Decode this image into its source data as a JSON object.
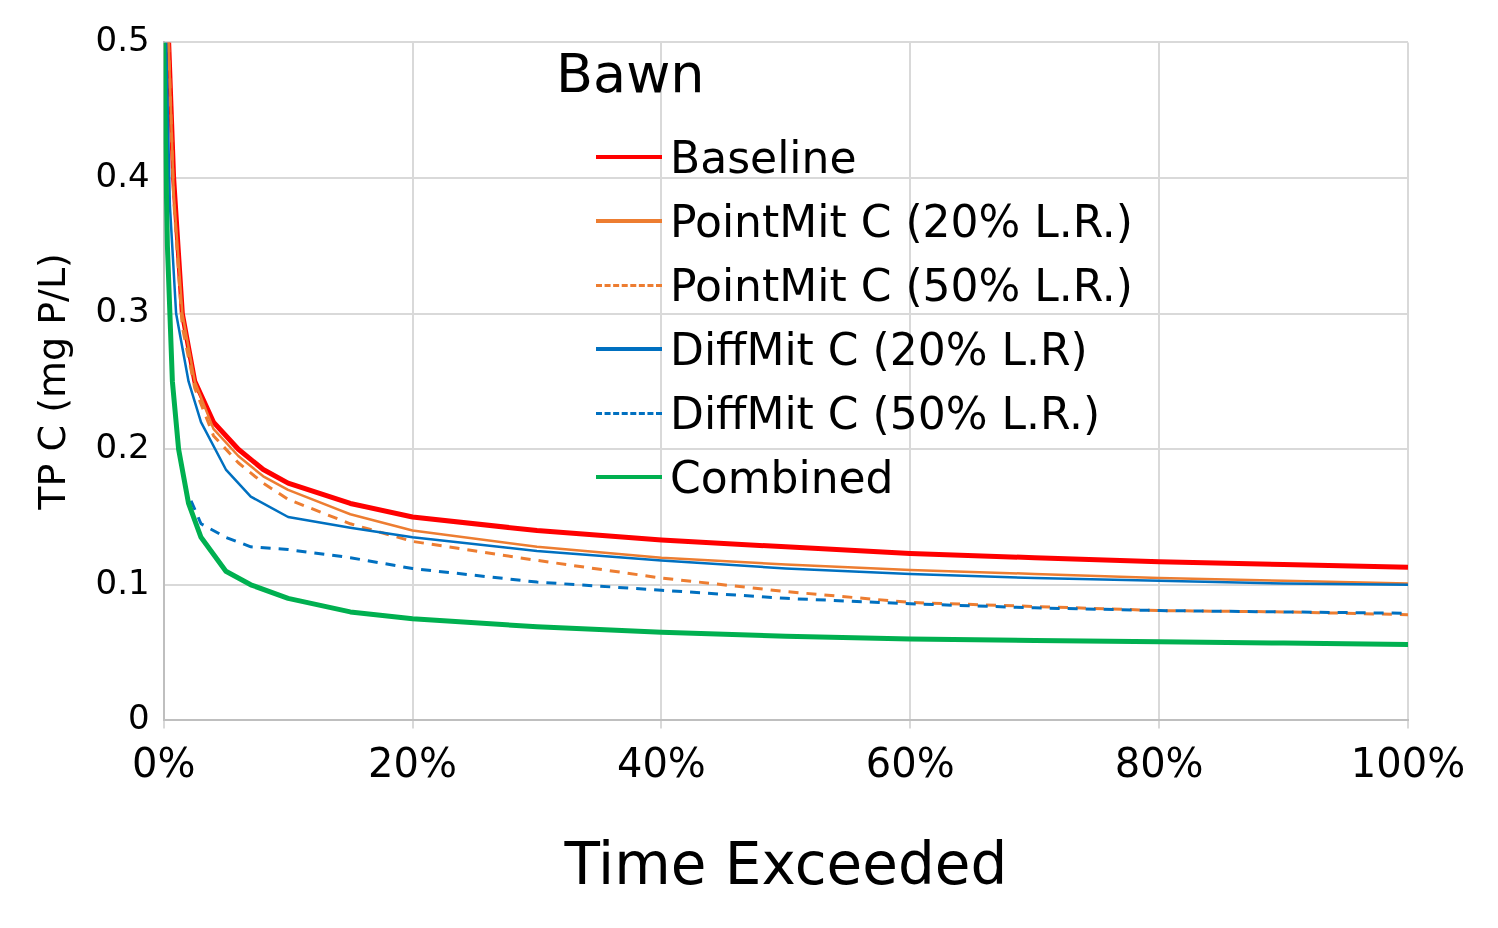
{
  "chart_data": {
    "type": "line",
    "legend_title": "Bawn",
    "xlabel": "Time Exceeded",
    "ylabel": "TP C (mg P/L)",
    "xlim": [
      0,
      100
    ],
    "xticks": [
      {
        "value": 0,
        "label": "0%"
      },
      {
        "value": 20,
        "label": "20%"
      },
      {
        "value": 40,
        "label": "40%"
      },
      {
        "value": 60,
        "label": "60%"
      },
      {
        "value": 80,
        "label": "80%"
      },
      {
        "value": 100,
        "label": "100%"
      }
    ],
    "ylim": [
      0,
      0.5
    ],
    "yticks": [
      0,
      0.1,
      0.2,
      0.3,
      0.4,
      0.5
    ],
    "grid": true,
    "legend": "top right",
    "marker": "none",
    "series": [
      {
        "name": "Baseline",
        "color": "#ff0000",
        "line_style": "solid",
        "x": [
          0.4,
          0.8,
          1.5,
          2.5,
          4,
          6,
          8,
          10,
          15,
          20,
          30,
          40,
          50,
          60,
          70,
          80,
          90,
          100
        ],
        "values": [
          0.5,
          0.4,
          0.3,
          0.25,
          0.22,
          0.2,
          0.185,
          0.175,
          0.16,
          0.15,
          0.14,
          0.133,
          0.128,
          0.123,
          0.12,
          0.117,
          0.115,
          0.113
        ]
      },
      {
        "name": "PointMit C (20% L.R.)",
        "color": "#ed7d31",
        "line_style": "solid",
        "x": [
          0.4,
          0.8,
          1.5,
          2.5,
          4,
          6,
          8,
          10,
          15,
          20,
          30,
          40,
          50,
          60,
          70,
          80,
          90,
          100
        ],
        "values": [
          0.5,
          0.39,
          0.3,
          0.25,
          0.215,
          0.195,
          0.18,
          0.17,
          0.152,
          0.14,
          0.128,
          0.12,
          0.115,
          0.111,
          0.108,
          0.105,
          0.103,
          0.101
        ]
      },
      {
        "name": "PointMit C (50% L.R.)",
        "color": "#ed7d31",
        "line_style": "dashed",
        "x": [
          0.4,
          0.8,
          1.5,
          2.5,
          4,
          6,
          8,
          10,
          15,
          20,
          30,
          40,
          50,
          60,
          70,
          80,
          90,
          100
        ],
        "values": [
          0.5,
          0.385,
          0.29,
          0.245,
          0.21,
          0.19,
          0.175,
          0.163,
          0.145,
          0.132,
          0.118,
          0.105,
          0.095,
          0.087,
          0.084,
          0.081,
          0.08,
          0.078
        ]
      },
      {
        "name": "DiffMit C (20% L.R)",
        "color": "#0070c0",
        "line_style": "solid",
        "x": [
          0.2,
          0.5,
          1,
          2,
          3,
          5,
          7,
          10,
          15,
          20,
          30,
          40,
          50,
          60,
          70,
          80,
          90,
          100
        ],
        "values": [
          0.5,
          0.38,
          0.3,
          0.25,
          0.22,
          0.185,
          0.165,
          0.15,
          0.142,
          0.135,
          0.125,
          0.118,
          0.112,
          0.108,
          0.105,
          0.103,
          0.101,
          0.1
        ]
      },
      {
        "name": "DiffMit C (50% L.R.)",
        "color": "#0070c0",
        "line_style": "dashed",
        "x": [
          2.2,
          3,
          5,
          7,
          10,
          15,
          20,
          25,
          30,
          40,
          50,
          60,
          70,
          80,
          90,
          100
        ],
        "values": [
          0.162,
          0.145,
          0.135,
          0.128,
          0.126,
          0.12,
          0.112,
          0.107,
          0.102,
          0.096,
          0.09,
          0.086,
          0.083,
          0.081,
          0.08,
          0.079
        ]
      },
      {
        "name": "Combined",
        "color": "#00b050",
        "line_style": "solid",
        "x": [
          0,
          0.3,
          0.7,
          1.2,
          2,
          3,
          5,
          7,
          10,
          15,
          20,
          30,
          40,
          50,
          60,
          70,
          80,
          90,
          100
        ],
        "values": [
          0.5,
          0.35,
          0.25,
          0.2,
          0.16,
          0.135,
          0.11,
          0.1,
          0.09,
          0.08,
          0.075,
          0.069,
          0.065,
          0.062,
          0.06,
          0.059,
          0.058,
          0.057,
          0.056
        ]
      }
    ]
  }
}
